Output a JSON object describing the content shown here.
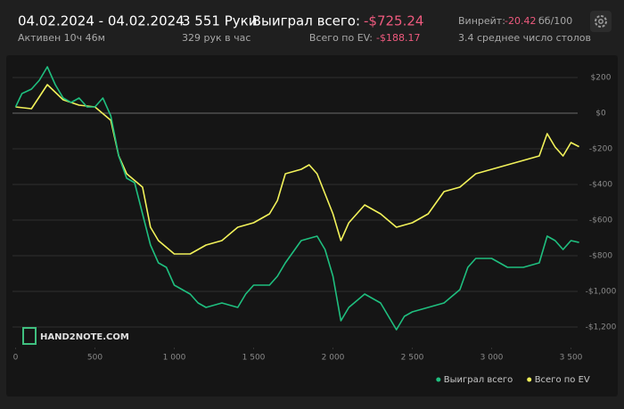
{
  "header": {
    "date_range": "04.02.2024 - 04.02.2024",
    "active": "Активен 10ч 46м",
    "hands": "3 551 Руки",
    "hands_per_hour": "329 рук в час",
    "won_label": "Выиграл всего:",
    "won_value": "-$725.24",
    "ev_label": "Всего по EV:",
    "ev_value": "-$188.17",
    "winrate_label": "Винрейт:",
    "winrate_value": "-20.42",
    "winrate_unit": "бб/100",
    "tables": "3.4 среднее число столов"
  },
  "logo": "HAND2NOTE.COM",
  "chart_data": {
    "type": "line",
    "xlim": [
      0,
      3551
    ],
    "ylim": [
      -1300,
      300
    ],
    "xticks": [
      0,
      500,
      {
        "value": 1000,
        "label": "1 000"
      },
      {
        "value": 1500,
        "label": "1 500"
      },
      {
        "value": 2000,
        "label": "2 000"
      },
      {
        "value": 2500,
        "label": "2 500"
      },
      {
        "value": 3000,
        "label": "3 000"
      },
      {
        "value": 3500,
        "label": "3 500"
      }
    ],
    "yticks": [
      {
        "value": 200,
        "label": "$200"
      },
      {
        "value": 0,
        "label": "$0"
      },
      {
        "value": -200,
        "label": "-$200"
      },
      {
        "value": -400,
        "label": "-$400"
      },
      {
        "value": -600,
        "label": "-$600"
      },
      {
        "value": -800,
        "label": "-$800"
      },
      {
        "value": -1000,
        "label": "-$1,000"
      },
      {
        "value": -1200,
        "label": "-$1,200"
      }
    ],
    "grid": true,
    "legend": "bottom-right",
    "series": [
      {
        "name": "Выиграл всего",
        "color": "#1fbf7f",
        "x": [
          0,
          40,
          100,
          150,
          200,
          250,
          300,
          350,
          400,
          450,
          500,
          550,
          600,
          650,
          700,
          750,
          800,
          850,
          900,
          950,
          1000,
          1050,
          1100,
          1150,
          1200,
          1300,
          1400,
          1450,
          1500,
          1600,
          1650,
          1700,
          1800,
          1900,
          1950,
          2000,
          2050,
          2100,
          2200,
          2300,
          2400,
          2450,
          2500,
          2600,
          2700,
          2800,
          2850,
          2900,
          3000,
          3100,
          3200,
          3300,
          3350,
          3400,
          3450,
          3500,
          3551
        ],
        "values": [
          35,
          110,
          135,
          185,
          260,
          160,
          85,
          60,
          85,
          35,
          35,
          85,
          -15,
          -240,
          -365,
          -390,
          -565,
          -740,
          -840,
          -865,
          -965,
          -990,
          -1015,
          -1065,
          -1090,
          -1065,
          -1090,
          -1015,
          -965,
          -965,
          -915,
          -840,
          -715,
          -690,
          -765,
          -915,
          -1165,
          -1090,
          -1015,
          -1065,
          -1215,
          -1140,
          -1115,
          -1090,
          -1065,
          -990,
          -865,
          -815,
          -815,
          -865,
          -865,
          -840,
          -690,
          -715,
          -765,
          -715,
          -725.24
        ]
      },
      {
        "name": "Всего по EV",
        "color": "#f2f25a",
        "x": [
          0,
          100,
          200,
          300,
          400,
          500,
          600,
          650,
          700,
          800,
          850,
          900,
          1000,
          1100,
          1200,
          1300,
          1400,
          1500,
          1600,
          1650,
          1700,
          1800,
          1850,
          1900,
          2000,
          2050,
          2100,
          2200,
          2300,
          2400,
          2500,
          2600,
          2700,
          2800,
          2900,
          3000,
          3100,
          3200,
          3300,
          3350,
          3400,
          3450,
          3500,
          3551
        ],
        "values": [
          35,
          25,
          160,
          75,
          45,
          35,
          -40,
          -240,
          -340,
          -415,
          -640,
          -715,
          -790,
          -790,
          -740,
          -715,
          -640,
          -615,
          -565,
          -490,
          -340,
          -315,
          -290,
          -340,
          -565,
          -715,
          -615,
          -515,
          -565,
          -640,
          -615,
          -565,
          -440,
          -415,
          -340,
          -315,
          -290,
          -265,
          -240,
          -115,
          -190,
          -240,
          -165,
          -188.17
        ]
      }
    ]
  }
}
